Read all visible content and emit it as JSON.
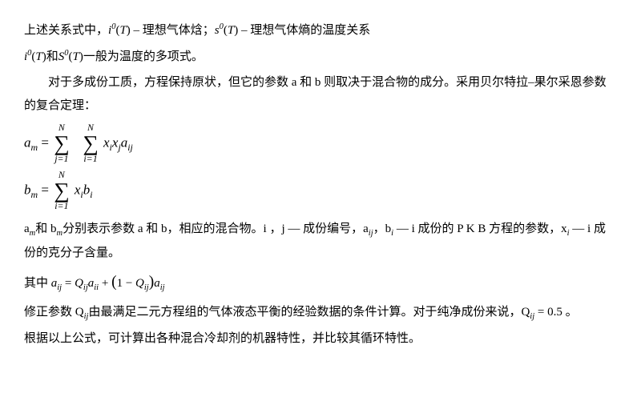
{
  "fontsize_body": 15,
  "fontsize_formula": 17,
  "line_height": 1.9,
  "text_color": "#000000",
  "background_color": "#ffffff",
  "line1_a": "上述关系式中，",
  "line1_m1_var": "i",
  "line1_m1_sup": "0",
  "line1_m1_arg": "T",
  "line1_b": " – 理想气体焓；",
  "line1_m2_var": "s",
  "line1_m2_sup": "0",
  "line1_m2_arg": "T",
  "line1_c": " – 理想气体熵的温度关系",
  "line2_m1_var": "i",
  "line2_m1_sup": "0",
  "line2_m1_arg": "T",
  "line2_mid": "和",
  "line2_m2_var": "S",
  "line2_m2_sup": "0",
  "line2_m2_arg": "T",
  "line2_b": "一般为温度的多项式。",
  "para3": "对于多成份工质，方程保持原状，但它的参数 a 和 b 则取决于混合物的成分。采用贝尔特拉–果尔采恩参数的复合定理：",
  "f1": {
    "lhs_var": "a",
    "lhs_sub": "m",
    "sum1_top": "N",
    "sum1_bot": "j=1",
    "sum2_top": "N",
    "sum2_bot": "i=1",
    "term": [
      "x",
      "i",
      "x",
      "j",
      "a",
      "ij"
    ]
  },
  "f2": {
    "lhs_var": "b",
    "lhs_sub": "m",
    "sum_top": "N",
    "sum_bot": "i=1",
    "term": [
      "x",
      "i",
      "b",
      "i"
    ]
  },
  "para5_a": "a",
  "para5_a_sub": "m",
  "para5_b": "和 b",
  "para5_b_sub": "m",
  "para5_c": "分别表示参数 a 和 b，相应的混合物。i ，j — 成份编号，a",
  "para5_c_sub": "ij",
  "para5_d": "，b",
  "para5_d_sub": "i",
  "para5_e": " — i 成份的 P K B 方程的参数，x",
  "para5_e_sub": "i",
  "para5_f": " — i 成份的克分子含量。",
  "f3_pre": "其中 ",
  "f3": {
    "lhs_var": "a",
    "lhs_sub": "ij",
    "t1_var": "Q",
    "t1_sub": "ij",
    "t2_var": "a",
    "t2_sub": "ii",
    "one": "1",
    "t3_var": "Q",
    "t3_sub": "ij",
    "t4_var": "a",
    "t4_sub": "ij"
  },
  "para7_a": "修正参数 Q",
  "para7_a_sub": "ij",
  "para7_b": "由最满足二元方程组的气体液态平衡的经验数据的条件计算。对于纯净成份来说，Q",
  "para7_b_sub": "ij",
  "para7_c": " = 0.5 。",
  "para8": "根据以上公式，可计算出各种混合冷却剂的机器特性，并比较其循环特性。"
}
